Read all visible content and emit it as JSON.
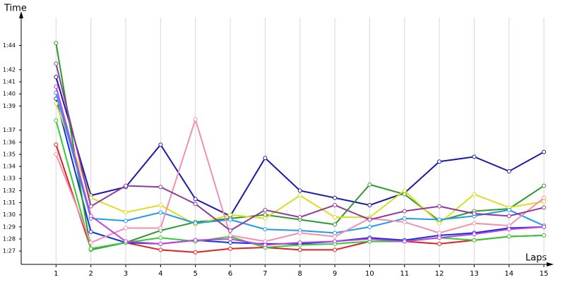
{
  "chart_data": {
    "type": "line",
    "y_label": "Time",
    "x_label": "Laps",
    "x": [
      1,
      2,
      3,
      4,
      5,
      6,
      7,
      8,
      9,
      10,
      11,
      12,
      13,
      14,
      15
    ],
    "xlim": [
      0,
      15.2
    ],
    "xticks": [
      1,
      2,
      3,
      4,
      5,
      6,
      7,
      8,
      9,
      10,
      11,
      12,
      13,
      14,
      15
    ],
    "ylim": [
      85.9,
      106.6
    ],
    "yticks": [
      {
        "value": 87,
        "label": "1:27"
      },
      {
        "value": 88,
        "label": "1:28"
      },
      {
        "value": 89,
        "label": "1:29"
      },
      {
        "value": 90,
        "label": "1:30"
      },
      {
        "value": 91,
        "label": "1:31"
      },
      {
        "value": 92,
        "label": "1:32"
      },
      {
        "value": 93,
        "label": "1:33"
      },
      {
        "value": 94,
        "label": "1:34"
      },
      {
        "value": 95,
        "label": "1:35"
      },
      {
        "value": 96,
        "label": "1:36"
      },
      {
        "value": 97,
        "label": "1:37"
      },
      {
        "value": 99,
        "label": "1:39"
      },
      {
        "value": 100,
        "label": "1:40"
      },
      {
        "value": 101,
        "label": "1:41"
      },
      {
        "value": 102,
        "label": "1:42"
      },
      {
        "value": 104,
        "label": "1:44"
      }
    ],
    "grid": "x",
    "series": [
      {
        "color": "#e02020",
        "values": [
          95.8,
          87.2,
          87.7,
          87.1,
          86.9,
          87.2,
          87.3,
          87.1,
          87.1,
          87.8,
          87.8,
          87.6,
          87.9,
          88.2,
          88.3
        ]
      },
      {
        "color": "#1030e0",
        "values": [
          99.6,
          88.6,
          87.7,
          87.6,
          87.9,
          87.7,
          87.6,
          87.6,
          87.8,
          88.1,
          87.9,
          88.3,
          88.5,
          88.9,
          89.0
        ]
      },
      {
        "color": "#1a1aa8",
        "values": [
          101.4,
          91.6,
          92.3,
          95.8,
          91.3,
          89.9,
          94.7,
          92.0,
          91.4,
          90.8,
          91.8,
          94.4,
          94.8,
          93.6,
          95.2
        ]
      },
      {
        "color": "#2e9a2e",
        "values": [
          104.2,
          87.1,
          87.7,
          88.7,
          89.4,
          89.7,
          90.0,
          89.6,
          89.2,
          92.5,
          91.7,
          89.5,
          90.3,
          90.5,
          92.4
        ]
      },
      {
        "color": "#33cc33",
        "values": [
          97.8,
          87.2,
          87.7,
          88.1,
          87.8,
          88.2,
          87.3,
          87.5,
          87.6,
          87.8,
          87.8,
          88.1,
          87.9,
          88.2,
          88.3
        ]
      },
      {
        "color": "#dddd22",
        "values": [
          99.2,
          91.4,
          90.2,
          90.8,
          89.2,
          90.0,
          89.7,
          91.6,
          89.8,
          89.8,
          92.0,
          89.3,
          91.7,
          90.6,
          91.1
        ]
      },
      {
        "color": "#2299ee",
        "values": [
          100.1,
          89.7,
          89.5,
          90.2,
          89.3,
          89.6,
          88.8,
          88.7,
          88.5,
          89.0,
          89.7,
          89.6,
          89.9,
          90.4,
          89.1
        ]
      },
      {
        "color": "#f58fb0",
        "values": [
          95.0,
          87.7,
          88.9,
          88.9,
          97.9,
          88.3,
          87.8,
          88.5,
          88.2,
          89.7,
          89.4,
          88.5,
          89.3,
          89.1,
          91.4
        ]
      },
      {
        "color": "#8e3a9a",
        "values": [
          102.5,
          90.7,
          92.4,
          92.3,
          90.9,
          88.7,
          90.4,
          89.8,
          90.8,
          89.6,
          90.3,
          90.7,
          90.1,
          89.9,
          90.6
        ]
      },
      {
        "color": "#c040e0",
        "values": [
          100.6,
          89.9,
          87.8,
          87.6,
          87.9,
          88.0,
          87.5,
          87.7,
          87.8,
          88.0,
          87.8,
          88.1,
          88.4,
          88.8,
          89.0
        ]
      }
    ]
  }
}
